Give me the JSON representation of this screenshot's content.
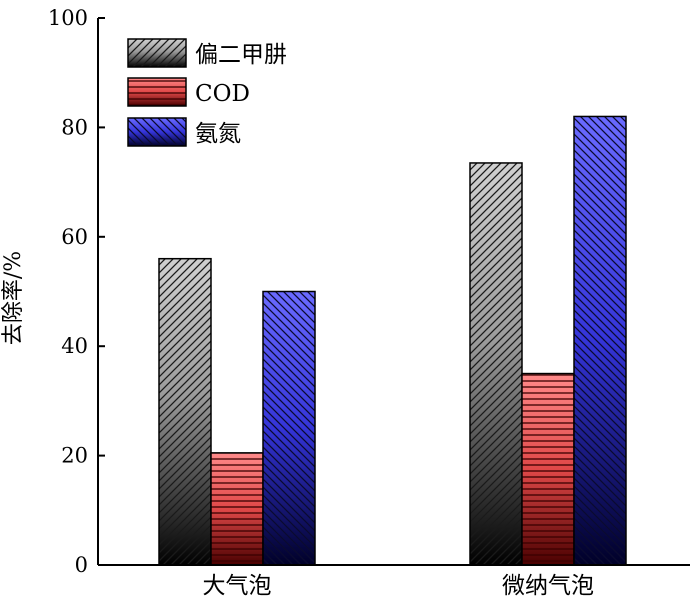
{
  "chart_data": {
    "type": "bar",
    "categories": [
      "大气泡",
      "微纳气泡"
    ],
    "series": [
      {
        "name": "偏二甲肼",
        "values": [
          56,
          73.5
        ],
        "color": "#a0a0a0",
        "pattern": "diagonal-up"
      },
      {
        "name": "COD",
        "values": [
          20.5,
          35
        ],
        "color": "#e85050",
        "pattern": "horizontal"
      },
      {
        "name": "氨氮",
        "values": [
          50,
          82
        ],
        "color": "#4848e8",
        "pattern": "diagonal-down"
      }
    ],
    "ylabel": "去除率/%",
    "xlabel": "",
    "ylim": [
      0,
      100
    ],
    "yticks": [
      0,
      20,
      40,
      60,
      80,
      100
    ],
    "grid": false,
    "legend_position": "top-left"
  }
}
